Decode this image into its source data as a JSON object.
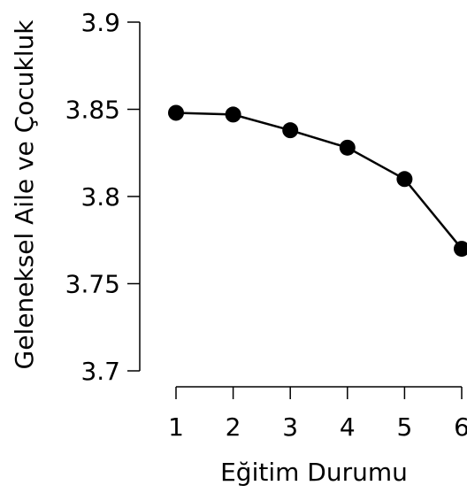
{
  "chart_data": {
    "type": "line",
    "title": "",
    "xlabel": "Eğitim Durumu",
    "ylabel": "Geleneksel Aile ve Çocukluk",
    "x": [
      1,
      2,
      3,
      4,
      5,
      6
    ],
    "xticks": [
      "1",
      "2",
      "3",
      "4",
      "5",
      "6"
    ],
    "yticks": [
      "3.7",
      "3.75",
      "3.8",
      "3.85",
      "3.9"
    ],
    "ytick_values": [
      3.7,
      3.75,
      3.8,
      3.85,
      3.9
    ],
    "ylim": [
      3.7,
      3.9
    ],
    "xlim": [
      1,
      6
    ],
    "grid": false,
    "series": [
      {
        "values": [
          3.848,
          3.847,
          3.838,
          3.828,
          3.81,
          3.77
        ],
        "color": "#000000"
      }
    ]
  }
}
